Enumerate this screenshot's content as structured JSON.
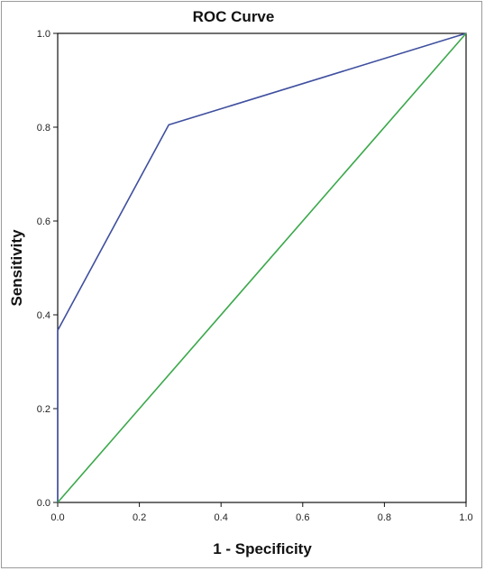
{
  "chart_data": {
    "type": "line",
    "title": "ROC Curve",
    "xlabel": "1 - Specificity",
    "ylabel": "Sensitivity",
    "xlim": [
      0,
      1
    ],
    "ylim": [
      0,
      1
    ],
    "x_ticks": [
      "0.0",
      "0.2",
      "0.4",
      "0.6",
      "0.8",
      "1.0"
    ],
    "y_ticks": [
      "0.0",
      "0.2",
      "0.4",
      "0.6",
      "0.8",
      "1.0"
    ],
    "grid": false,
    "legend": "none",
    "series": [
      {
        "color": "#3f4f9f",
        "x": [
          0.0,
          0.0,
          0.272,
          1.0
        ],
        "y": [
          0.0,
          0.367,
          0.805,
          1.0
        ]
      },
      {
        "color": "#3aa84a",
        "x": [
          0.0,
          1.0
        ],
        "y": [
          0.0,
          1.0
        ]
      }
    ]
  }
}
